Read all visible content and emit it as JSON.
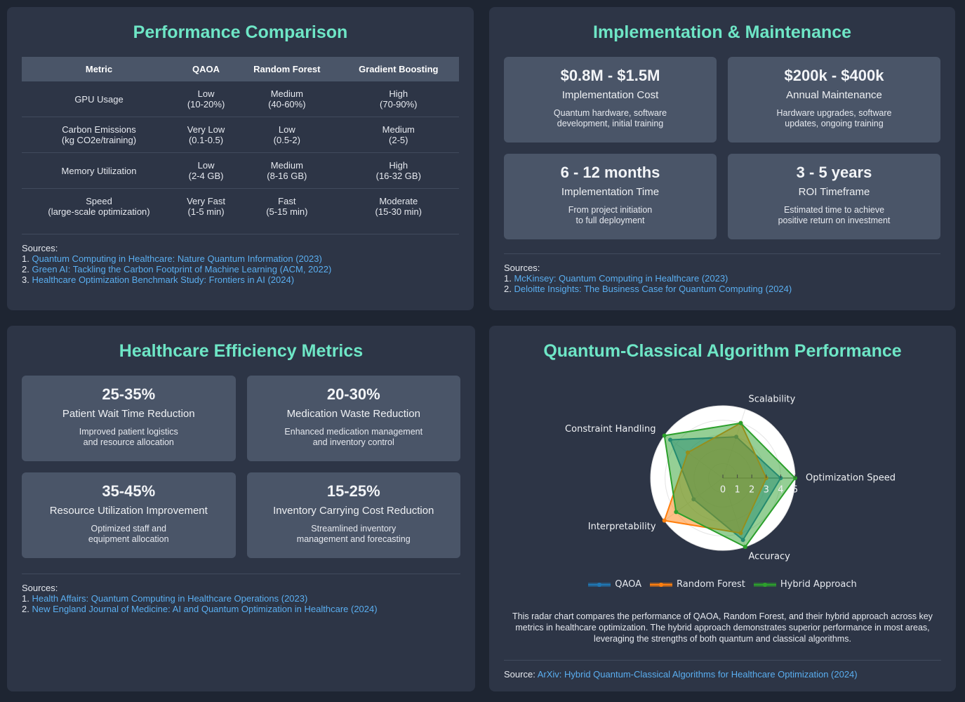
{
  "performance": {
    "title": "Performance Comparison",
    "table": {
      "header": [
        "Metric",
        "QAOA",
        "Random Forest",
        "Gradient Boosting"
      ],
      "rows": [
        [
          "GPU Usage",
          "Low\n(10-20%)",
          "Medium\n(40-60%)",
          "High\n(70-90%)"
        ],
        [
          "Carbon Emissions\n(kg CO2e/training)",
          "Very Low\n(0.1-0.5)",
          "Low\n(0.5-2)",
          "Medium\n(2-5)"
        ],
        [
          "Memory Utilization",
          "Low\n(2-4 GB)",
          "Medium\n(8-16 GB)",
          "High\n(16-32 GB)"
        ],
        [
          "Speed\n(large-scale optimization)",
          "Very Fast\n(1-5 min)",
          "Fast\n(5-15 min)",
          "Moderate\n(15-30 min)"
        ]
      ]
    },
    "sources_label": "Sources:",
    "sources": [
      "Quantum Computing in Healthcare: Nature Quantum Information (2023)",
      "Green AI: Tackling the Carbon Footprint of Machine Learning (ACM, 2022)",
      "Healthcare Optimization Benchmark Study: Frontiers in AI (2024)"
    ]
  },
  "implementation": {
    "title": "Implementation & Maintenance",
    "cards": [
      {
        "value": "$0.8M - $1.5M",
        "label": "Implementation Cost",
        "desc": "Quantum hardware, software\ndevelopment, initial training"
      },
      {
        "value": "$200k - $400k",
        "label": "Annual Maintenance",
        "desc": "Hardware upgrades, software\nupdates, ongoing training"
      },
      {
        "value": "6 - 12 months",
        "label": "Implementation Time",
        "desc": "From project initiation\nto full deployment"
      },
      {
        "value": "3 - 5 years",
        "label": "ROI Timeframe",
        "desc": "Estimated time to achieve\npositive return on investment"
      }
    ],
    "sources_label": "Sources:",
    "sources": [
      "McKinsey: Quantum Computing in Healthcare (2023)",
      "Deloitte Insights: The Business Case for Quantum Computing (2024)"
    ]
  },
  "efficiency": {
    "title": "Healthcare Efficiency Metrics",
    "cards": [
      {
        "value": "25-35%",
        "label": "Patient Wait Time Reduction",
        "desc": "Improved patient logistics\nand resource allocation"
      },
      {
        "value": "20-30%",
        "label": "Medication Waste Reduction",
        "desc": "Enhanced medication management\nand inventory control"
      },
      {
        "value": "35-45%",
        "label": "Resource Utilization Improvement",
        "desc": "Optimized staff and\nequipment allocation"
      },
      {
        "value": "15-25%",
        "label": "Inventory Carrying Cost Reduction",
        "desc": "Streamlined inventory\nmanagement and forecasting"
      }
    ],
    "sources_label": "Sources:",
    "sources": [
      "Health Affairs: Quantum Computing in Healthcare Operations (2023)",
      "New England Journal of Medicine: AI and Quantum Optimization in Healthcare (2024)"
    ]
  },
  "chart_data": {
    "type": "radar",
    "title": "Quantum-Classical Algorithm Performance",
    "axes": [
      "Optimization Speed",
      "Scalability",
      "Constraint Handling",
      "Interpretability",
      "Accuracy"
    ],
    "series": [
      {
        "name": "QAOA",
        "color": "#1f77b4",
        "values": [
          4,
          3,
          4.5,
          2.5,
          4.5
        ]
      },
      {
        "name": "Random Forest",
        "color": "#ff7f0e",
        "values": [
          3,
          4,
          3,
          5,
          4
        ]
      },
      {
        "name": "Hybrid Approach",
        "color": "#2ca02c",
        "values": [
          5,
          4,
          5,
          4,
          5
        ]
      }
    ],
    "rlim": [
      0,
      5
    ],
    "rticks": [
      0,
      1,
      2,
      3,
      4,
      5
    ],
    "description": "This radar chart compares the performance of QAOA, Random Forest, and their hybrid approach across key metrics in healthcare optimization. The hybrid approach demonstrates superior performance in most areas, leveraging the strengths of both quantum and classical algorithms.",
    "source_label": "Source:",
    "source": "ArXiv: Hybrid Quantum-Classical Algorithms for Healthcare Optimization (2024)"
  }
}
